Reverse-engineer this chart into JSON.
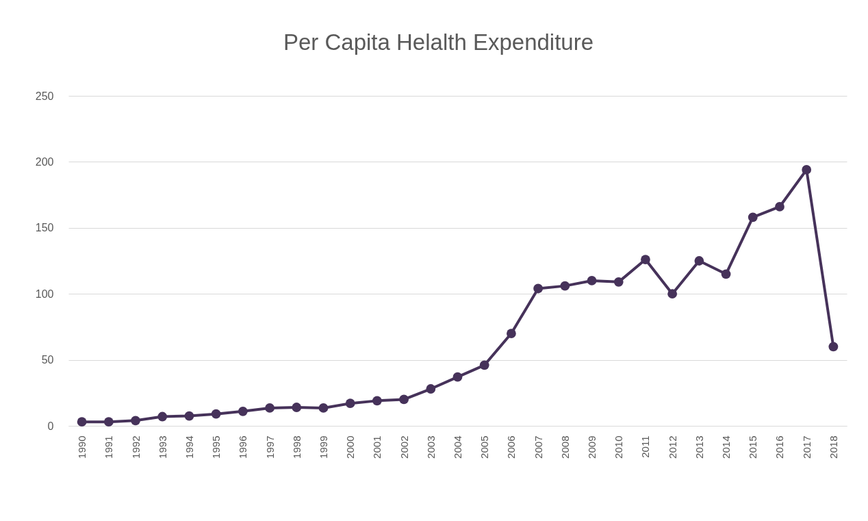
{
  "chart_data": {
    "type": "line",
    "title": "Per Capita Helalth Expenditure",
    "categories": [
      "1990",
      "1991",
      "1992",
      "1993",
      "1994",
      "1995",
      "1996",
      "1997",
      "1998",
      "1999",
      "2000",
      "2001",
      "2002",
      "2003",
      "2004",
      "2005",
      "2006",
      "2007",
      "2008",
      "2009",
      "2010",
      "2011",
      "2012",
      "2013",
      "2014",
      "2015",
      "2016",
      "2017",
      "2018"
    ],
    "series": [
      {
        "color": "#46325a",
        "values": [
          3,
          3,
          4,
          7,
          7.5,
          9,
          11,
          13.5,
          14,
          13.5,
          17,
          19,
          20,
          28,
          37,
          46,
          70,
          104,
          106,
          110,
          109,
          126,
          100,
          125,
          115,
          158,
          166,
          194,
          60
        ]
      }
    ],
    "ylim": [
      0,
      250
    ],
    "yticks": [
      0,
      50,
      100,
      150,
      200,
      250
    ],
    "grid": "y",
    "marker": "circle"
  }
}
